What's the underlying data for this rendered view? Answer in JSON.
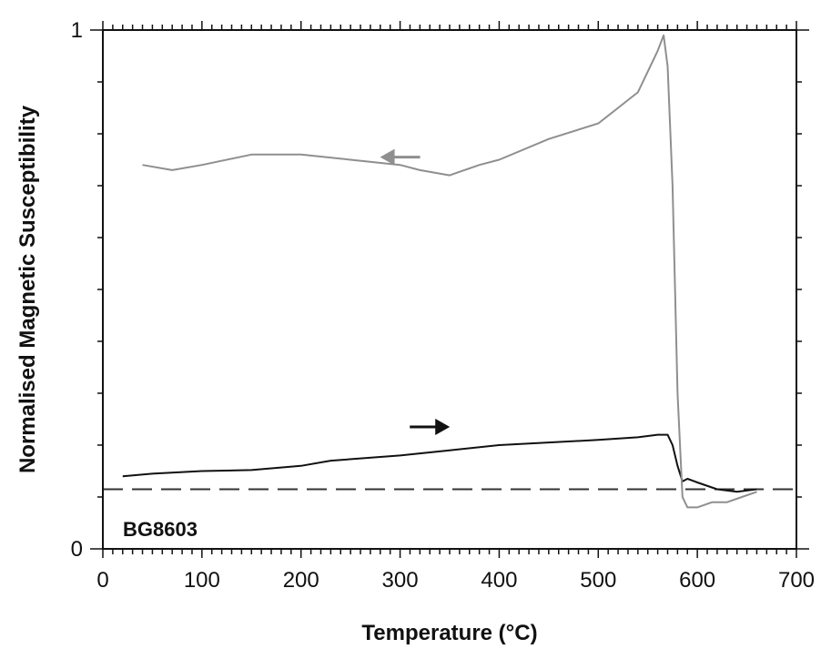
{
  "chart_data": {
    "type": "line",
    "title": "",
    "xlabel": "Temperature (°C)",
    "ylabel": "Normalised Magnetic Susceptibility",
    "xlim": [
      0,
      700
    ],
    "ylim": [
      0,
      1
    ],
    "x_ticks": [
      0,
      100,
      200,
      300,
      400,
      500,
      600,
      700
    ],
    "y_ticks": [
      0,
      1
    ],
    "grid": false,
    "sample_label": "BG8603",
    "reference_line": {
      "y": 0.115,
      "style": "dashed"
    },
    "colors": {
      "heating": "#111111",
      "cooling": "#8f8f8f",
      "reference": "#333333"
    },
    "series": [
      {
        "direction": "heating",
        "arrow": "right",
        "x": [
          20,
          50,
          100,
          150,
          200,
          230,
          300,
          350,
          400,
          450,
          500,
          540,
          560,
          570,
          575,
          580,
          585,
          590,
          600,
          620,
          640,
          660
        ],
        "y": [
          0.14,
          0.145,
          0.15,
          0.152,
          0.16,
          0.17,
          0.18,
          0.19,
          0.2,
          0.205,
          0.21,
          0.215,
          0.22,
          0.22,
          0.2,
          0.16,
          0.13,
          0.135,
          0.128,
          0.115,
          0.11,
          0.115
        ]
      },
      {
        "direction": "cooling",
        "arrow": "left",
        "x": [
          660,
          645,
          630,
          615,
          600,
          590,
          585,
          580,
          575,
          570,
          566,
          560,
          540,
          520,
          500,
          450,
          400,
          380,
          350,
          320,
          300,
          250,
          200,
          150,
          100,
          70,
          40
        ],
        "y": [
          0.11,
          0.1,
          0.09,
          0.09,
          0.08,
          0.08,
          0.1,
          0.3,
          0.7,
          0.93,
          0.99,
          0.96,
          0.88,
          0.85,
          0.82,
          0.79,
          0.75,
          0.74,
          0.72,
          0.73,
          0.74,
          0.75,
          0.76,
          0.76,
          0.74,
          0.73,
          0.74
        ]
      }
    ]
  }
}
